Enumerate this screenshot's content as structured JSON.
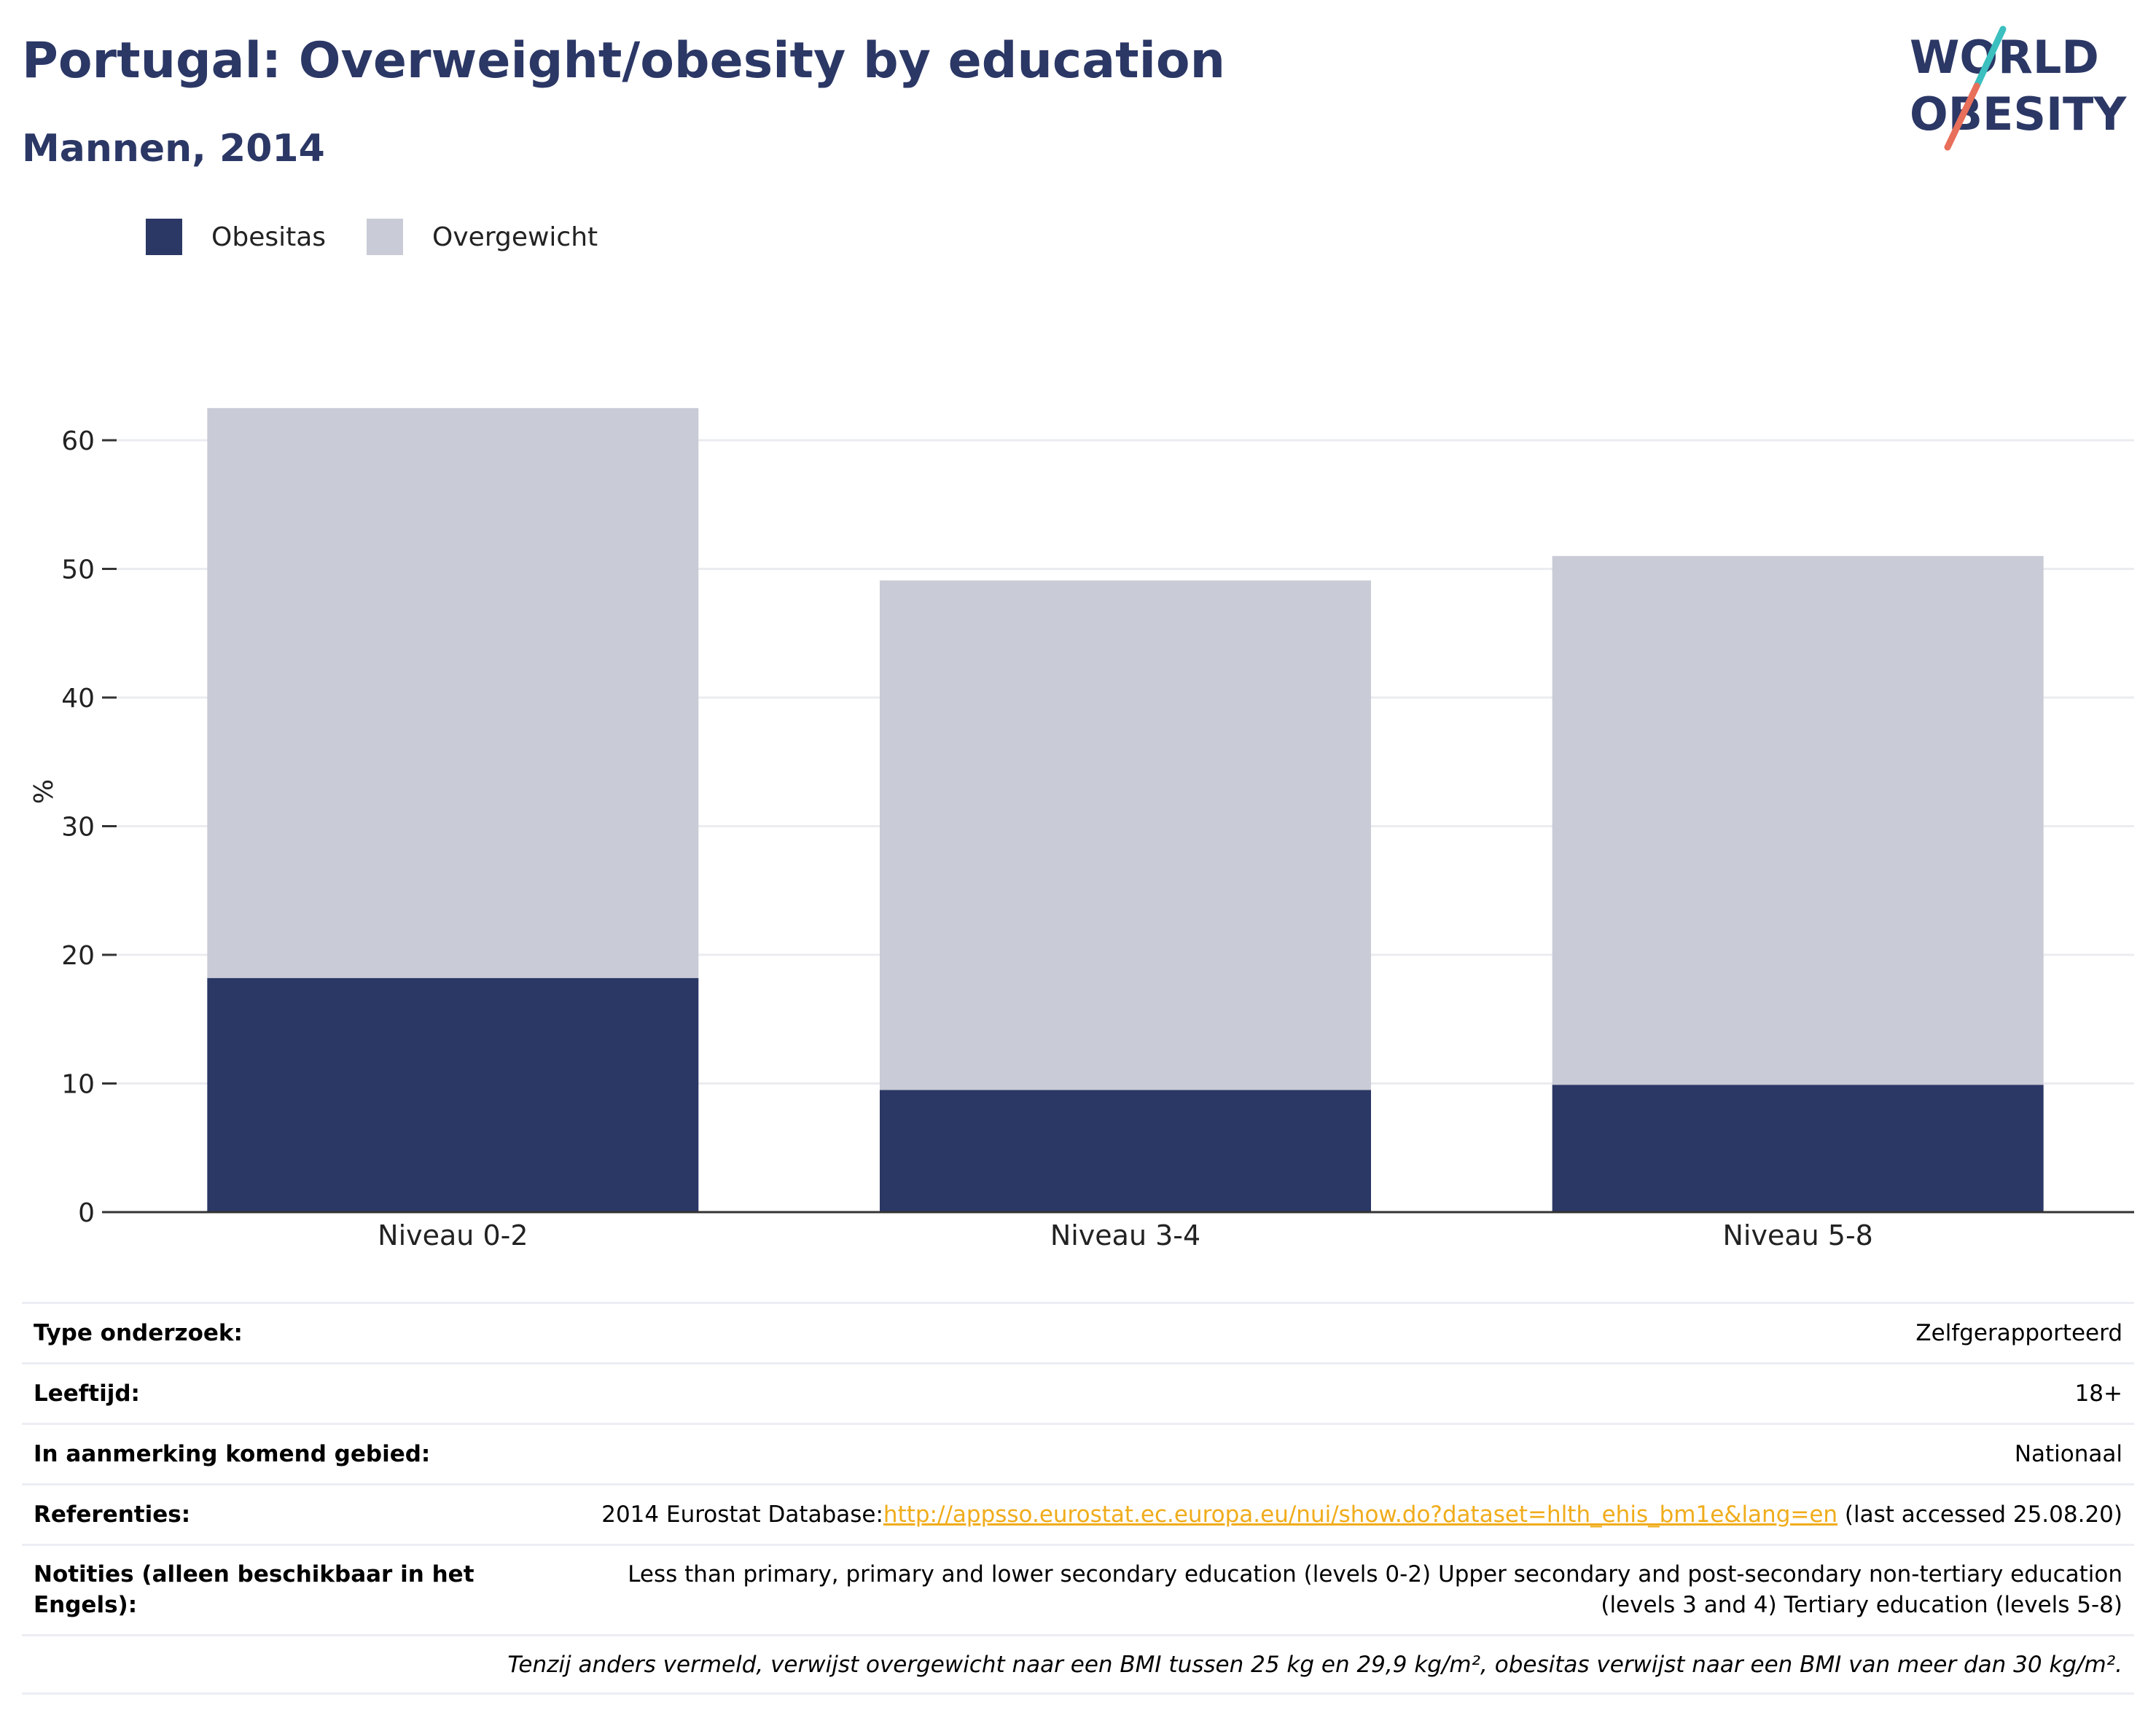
{
  "header": {
    "title": "Portugal: Overweight/obesity by education",
    "subtitle": "Mannen, 2014",
    "logo_line1": "WORLD",
    "logo_line2": "OBESITY"
  },
  "colors": {
    "obesitas": "#2b3765",
    "overgewicht": "#c9cbd6",
    "logo_teal": "#3bbfbf",
    "logo_red": "#e86f5a",
    "link": "#f0ac1b"
  },
  "chart_data": {
    "type": "bar",
    "stacked": true,
    "categories": [
      "Niveau 0-2",
      "Niveau 3-4",
      "Niveau 5-8"
    ],
    "series": [
      {
        "name": "Obesitas",
        "values": [
          18.2,
          9.5,
          9.9
        ]
      },
      {
        "name": "Overgewicht",
        "values": [
          44.3,
          39.6,
          41.1
        ]
      }
    ],
    "ylabel": "%",
    "xlabel": "",
    "ylim": [
      0,
      65
    ],
    "yticks": [
      0,
      10,
      20,
      30,
      40,
      50,
      60
    ],
    "grid": true,
    "legend": "top-left"
  },
  "info": {
    "type_label": "Type onderzoek:",
    "type_value": "Zelfgerapporteerd",
    "age_label": "Leeftijd:",
    "age_value": "18+",
    "area_label": "In aanmerking komend gebied:",
    "area_value": "Nationaal",
    "ref_label": "Referenties:",
    "ref_prefix": "2014 Eurostat Database:",
    "ref_link": "http://appsso.eurostat.ec.europa.eu/nui/show.do?dataset=hlth_ehis_bm1e&lang=en",
    "ref_suffix": " (last accessed 25.08.20)",
    "notes_label": "Notities (alleen beschikbaar in het Engels):",
    "notes_value": "Less than primary, primary and lower secondary education (levels 0-2) Upper secondary and post-secondary non-tertiary education (levels 3 and 4) Tertiary education (levels 5-8)",
    "footnote": "Tenzij anders vermeld, verwijst overgewicht naar een BMI tussen 25 kg en 29,9 kg/m², obesitas verwijst naar een BMI van meer dan 30 kg/m²."
  }
}
